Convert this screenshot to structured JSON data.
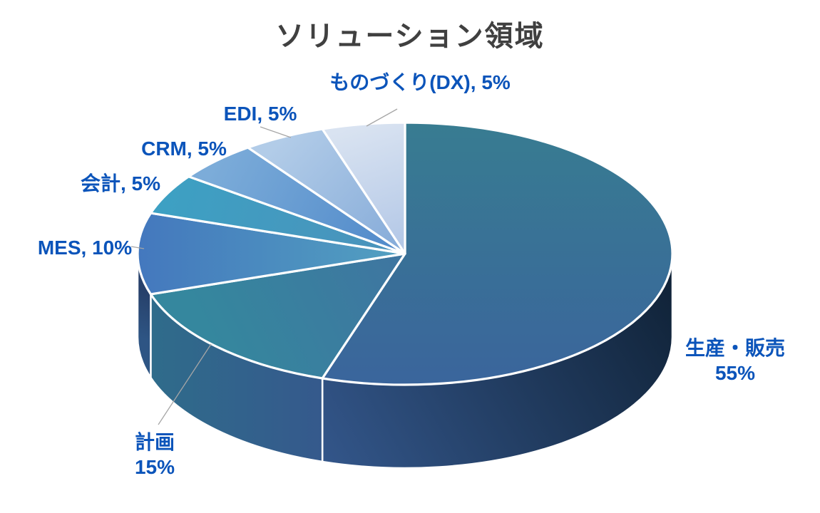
{
  "title": "ソリューション領域",
  "colors": {
    "title_text": "#404040",
    "label_text": "#0B54BA",
    "leader_line": "#A6A6A6",
    "separator": "#FFFFFF",
    "background": "#FFFFFF"
  },
  "chart_data": {
    "type": "pie",
    "style": "3d",
    "title": "ソリューション領域",
    "unit": "%",
    "start_angle_deg": 0,
    "direction": "clockwise",
    "labels_position": "outside-end",
    "legend": "none",
    "slices": [
      {
        "label": "生産・販売",
        "value": 55,
        "data_label": "生産・販売 55%",
        "top_colors": [
          "#387C91",
          "#3A659C"
        ],
        "side_colors": [
          "#33568A",
          "#0F2135"
        ]
      },
      {
        "label": "計画",
        "value": 15,
        "data_label": "計画 15%",
        "top_colors": [
          "#35879E",
          "#3F75A0"
        ],
        "side_colors": [
          "#2F6C8B",
          "#35598C"
        ]
      },
      {
        "label": "MES",
        "value": 10,
        "data_label": "MES, 10%",
        "top_colors": [
          "#4478BE",
          "#52A0C0"
        ],
        "side_colors": [
          "#2E5584",
          "#27416B"
        ]
      },
      {
        "label": "会計",
        "value": 5,
        "data_label": "会計, 5%",
        "top_colors": [
          "#3DA0C3",
          "#4B92BB"
        ]
      },
      {
        "label": "CRM",
        "value": 5,
        "data_label": "CRM, 5%",
        "top_colors": [
          "#7CACD9",
          "#4E88C9"
        ]
      },
      {
        "label": "EDI",
        "value": 5,
        "data_label": "EDI, 5%",
        "top_colors": [
          "#B2CCE8",
          "#84AAD8"
        ]
      },
      {
        "label": "ものづくり(DX)",
        "value": 5,
        "data_label": "ものづくり(DX), 5%",
        "top_colors": [
          "#D9E3F1",
          "#B1C6E6"
        ]
      }
    ]
  },
  "callouts": {
    "monozukuri": "ものづくり(DX), 5%",
    "edi": "EDI, 5%",
    "crm": "CRM, 5%",
    "kaikei": "会計, 5%",
    "mes": "MES, 10%",
    "keikaku_line1": "計画",
    "keikaku_line2": "15%",
    "sanhan_line1": "生産・販売",
    "sanhan_line2": "55%"
  }
}
